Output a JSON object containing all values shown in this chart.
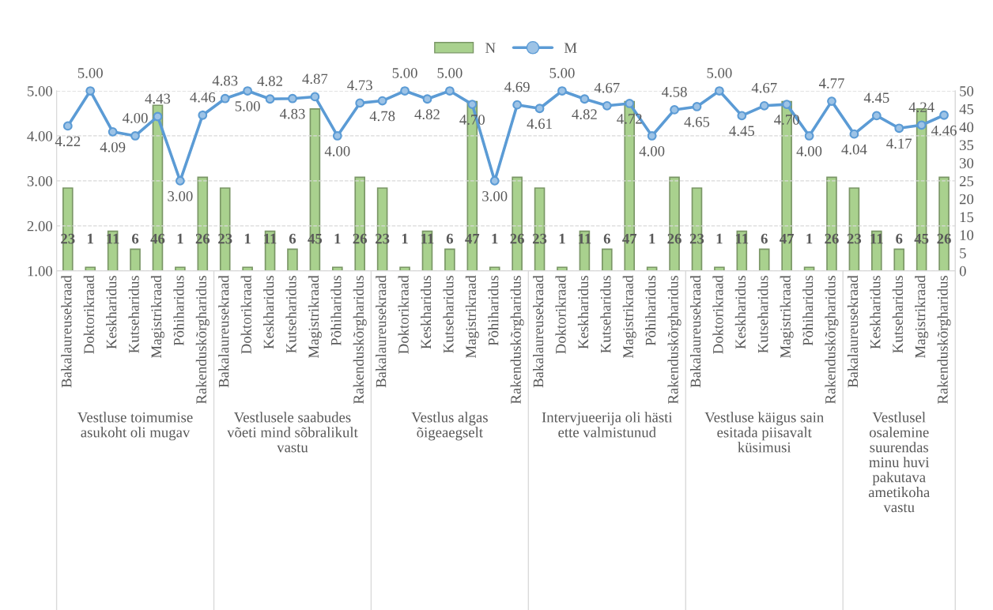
{
  "chart_data": {
    "type": "bar",
    "categories": [
      "Bakalaureusekraad",
      "Doktorikraad",
      "Keskharidus",
      "Kutseharidus",
      "Magistrikraad",
      "Põhiharidus",
      "Rakenduskõrgharidus",
      "Bakalaureusekraad",
      "Doktorikraad",
      "Keskharidus",
      "Kutseharidus",
      "Magistrikraad",
      "Põhiharidus",
      "Rakenduskõrgharidus",
      "Bakalaureusekraad",
      "Doktorikraad",
      "Keskharidus",
      "Kutseharidus",
      "Magistrikraad",
      "Põhiharidus",
      "Rakenduskõrgharidus",
      "Bakalaureusekraad",
      "Doktorikraad",
      "Keskharidus",
      "Kutseharidus",
      "Magistrikraad",
      "Põhiharidus",
      "Rakenduskõrgharidus",
      "Bakalaureusekraad",
      "Doktorikraad",
      "Keskharidus",
      "Kutseharidus",
      "Magistrikraad",
      "Põhiharidus",
      "Rakenduskõrgharidus",
      "Bakalaureusekraad",
      "Keskharidus",
      "Kutseharidus",
      "Magistrikraad",
      "Rakenduskõrgharidus"
    ],
    "series": [
      {
        "name": "N",
        "axis": "y2",
        "color": "#a9d18e",
        "values": [
          23,
          1,
          11,
          6,
          46,
          1,
          26,
          23,
          1,
          11,
          6,
          45,
          1,
          26,
          23,
          1,
          11,
          6,
          47,
          1,
          26,
          23,
          1,
          11,
          6,
          47,
          1,
          26,
          23,
          1,
          11,
          6,
          47,
          1,
          26,
          23,
          11,
          6,
          45,
          26
        ],
        "value_labels": [
          "23",
          "1",
          "11",
          "6",
          "46",
          "1",
          "26",
          "23",
          "1",
          "11",
          "6",
          "45",
          "1",
          "26",
          "23",
          "1",
          "11",
          "6",
          "47",
          "1",
          "26",
          "23",
          "1",
          "11",
          "6",
          "47",
          "1",
          "26",
          "23",
          "1",
          "11",
          "6",
          "47",
          "1",
          "26",
          "23",
          "11",
          "6",
          "45",
          "26"
        ]
      },
      {
        "name": "M",
        "type": "line",
        "color": "#5b9bd5",
        "values": [
          4.22,
          5.0,
          4.09,
          4.0,
          4.43,
          3.0,
          4.46,
          4.83,
          5.0,
          4.82,
          4.83,
          4.87,
          4.0,
          4.73,
          4.78,
          5.0,
          4.82,
          5.0,
          4.7,
          3.0,
          4.69,
          4.61,
          5.0,
          4.82,
          4.67,
          4.72,
          4.0,
          4.58,
          4.65,
          5.0,
          4.45,
          4.67,
          4.7,
          4.0,
          4.77,
          4.04,
          4.45,
          4.17,
          4.24,
          4.46
        ],
        "value_labels": [
          "4.22",
          "5.00",
          "4.09",
          "4.00",
          "4.43",
          "3.00",
          "4.46",
          "4.83",
          "5.00",
          "4.82",
          "4.83",
          "4.87",
          "4.00",
          "4.73",
          "4.78",
          "5.00",
          "4.82",
          "5.00",
          "4.70",
          "3.00",
          "4.69",
          "4.61",
          "5.00",
          "4.82",
          "4.67",
          "4.72",
          "4.00",
          "4.58",
          "4.65",
          "5.00",
          "4.45",
          "4.67",
          "4.70",
          "4.00",
          "4.77",
          "4.04",
          "4.45",
          "4.17",
          "4.24",
          "4.46"
        ]
      }
    ],
    "ylim": [
      1,
      5
    ],
    "yticks": [
      {
        "value": 1,
        "label": "1.00"
      },
      {
        "value": 2,
        "label": "2.00"
      },
      {
        "value": 3,
        "label": "3.00"
      },
      {
        "value": 4,
        "label": "4.00"
      },
      {
        "value": 5,
        "label": "5.00"
      }
    ],
    "y2lim": [
      0,
      50
    ],
    "y2ticks": [
      0,
      5,
      10,
      15,
      20,
      25,
      30,
      35,
      40,
      45,
      50
    ],
    "annotations": [
      "Vestluse toimumise asukoht oli mugav",
      "Vestlusele saabudes võeti mind sõbralikult vastu",
      "Vestlus algas õigeaegselt",
      "Intervjueerija oli hästi ette valmistunud",
      "Vestluse käigus sain esitada piisavalt küsimusi",
      "Vestlusel osalemine suurendas minu huvi pakutava ametikoha vastu"
    ],
    "grid": "y",
    "legend": "top",
    "marker": "circle",
    "line_style": "solid"
  }
}
